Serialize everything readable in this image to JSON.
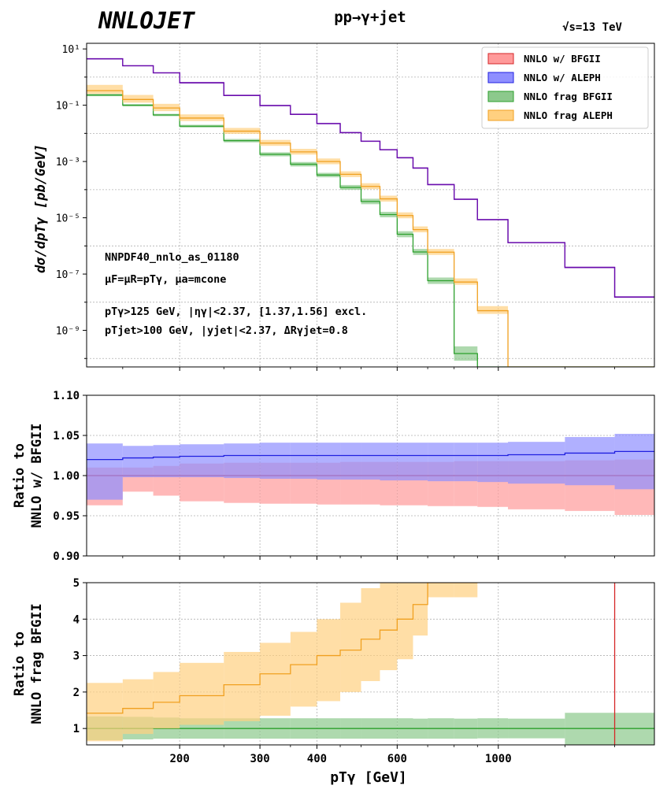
{
  "header": {
    "logo": "NNLOJET",
    "process": "pp→γ+jet",
    "energy": "√s=13 TeV"
  },
  "colors": {
    "bfgii": "#d62728",
    "bfgii_band": "#ff9a9a",
    "aleph": "#2020e0",
    "aleph_band": "#8f8fff",
    "frag_bfgii": "#2ca02c",
    "frag_bfgii_band": "#8cc98c",
    "frag_aleph": "#f0a020",
    "frag_aleph_band": "#ffd080",
    "overlap_line": "#6a0dad",
    "grid": "#b0b0b0"
  },
  "chart_data": {
    "type": "line",
    "bin_edges": [
      125,
      150,
      175,
      200,
      250,
      300,
      350,
      400,
      450,
      500,
      550,
      600,
      650,
      700,
      800,
      900,
      1050,
      1400,
      1800,
      2200
    ],
    "x_tick_labels": [
      "200",
      "300",
      "400",
      "600",
      "1000"
    ],
    "x_tick_values": [
      200,
      300,
      400,
      600,
      1000
    ],
    "xlabel": "pTγ [GeV]",
    "annotations": [
      "NNPDF40_nnlo_as_01180",
      "μF=μR=pTγ, μa=mcone",
      "pTγ>125 GeV, |ηγ|<2.37, [1.37,1.56] excl.",
      "pTjet>100 GeV, |yjet|<2.37, ΔRγjet=0.8"
    ],
    "legend": [
      "NNLO w/ BFGII",
      "NNLO w/ ALEPH",
      "NNLO frag BFGII",
      "NNLO frag ALEPH"
    ],
    "panels": [
      {
        "name": "main",
        "ylabel": "dσ/dpTγ [pb/GeV]",
        "yscale": "log",
        "ylim_exp": [
          -10.3,
          1.2
        ],
        "y_ticks": [
          "10¹",
          "10⁻¹",
          "10⁻³",
          "10⁻⁵",
          "10⁻⁷",
          "10⁻⁹"
        ],
        "y_tick_exps": [
          1,
          -1,
          -3,
          -5,
          -7,
          -9
        ],
        "series": [
          {
            "name": "NNLO w/ BFGII",
            "key": "bfgii",
            "values": [
              4.4,
              2.5,
              1.4,
              0.62,
              0.22,
              0.096,
              0.047,
              0.022,
              0.0105,
              0.0052,
              0.0026,
              0.00135,
              0.00058,
              0.00015,
              4.5e-05,
              8.5e-06,
              1.3e-06,
              1.7e-07,
              1.5e-08
            ],
            "err": 0.01
          },
          {
            "name": "NNLO w/ ALEPH",
            "key": "aleph",
            "values": [
              4.5,
              2.55,
              1.43,
              0.635,
              0.225,
              0.098,
              0.048,
              0.0225,
              0.0107,
              0.0053,
              0.00265,
              0.00138,
              0.00059,
              0.000153,
              4.6e-05,
              8.7e-06,
              1.32e-06,
              1.74e-07,
              1.55e-08
            ],
            "err": 0.012
          },
          {
            "name": "NNLO frag BFGII",
            "key": "frag_bfgii",
            "values": [
              0.23,
              0.1,
              0.045,
              0.018,
              0.0055,
              0.0018,
              0.0008,
              0.00033,
              0.00012,
              3.8e-05,
              1.3e-05,
              2.6e-06,
              6.1e-07,
              5.8e-08,
              1.5e-10,
              1e-12,
              1e-12,
              1e-12,
              1e-12
            ],
            "err_up": [
              0.1,
              0.1,
              0.1,
              0.12,
              0.15,
              0.18,
              0.2,
              0.2,
              0.22,
              0.25,
              0.25,
              0.28,
              0.28,
              0.3,
              0.8,
              0,
              0,
              0,
              0
            ],
            "err_dn": [
              0.1,
              0.1,
              0.1,
              0.12,
              0.15,
              0.18,
              0.2,
              0.2,
              0.22,
              0.25,
              0.25,
              0.28,
              0.28,
              0.3,
              0.8,
              0,
              0,
              0,
              0
            ]
          },
          {
            "name": "NNLO frag ALEPH",
            "key": "frag_aleph",
            "values": [
              0.33,
              0.16,
              0.08,
              0.035,
              0.012,
              0.0045,
              0.0022,
              0.001,
              0.00035,
              0.00013,
              4.7e-05,
              1.2e-05,
              3.8e-06,
              6e-07,
              5.2e-08,
              5e-09,
              1e-12,
              1e-12,
              1e-12
            ],
            "err_up": [
              0.6,
              0.45,
              0.4,
              0.35,
              0.3,
              0.3,
              0.28,
              0.28,
              0.28,
              0.3,
              0.3,
              0.3,
              0.3,
              0.3,
              0.35,
              0.45,
              0,
              0,
              0
            ],
            "err_dn": [
              0.3,
              0.3,
              0.3,
              0.28,
              0.25,
              0.25,
              0.25,
              0.25,
              0.25,
              0.25,
              0.25,
              0.25,
              0.25,
              0.25,
              0.25,
              0.3,
              0,
              0,
              0
            ]
          }
        ]
      },
      {
        "name": "ratio1",
        "ylabel": [
          "Ratio to",
          "NNLO w/ BFGII"
        ],
        "ylim": [
          0.9,
          1.1
        ],
        "y_ticks": [
          0.9,
          0.95,
          1.0,
          1.05,
          1.1
        ],
        "y_tick_labels": [
          "0.90",
          "0.95",
          "1.00",
          "1.05",
          "1.10"
        ],
        "series": [
          {
            "name": "NNLO w/ BFGII",
            "key": "bfgii",
            "center": [
              1,
              1,
              1,
              1,
              1,
              1,
              1,
              1,
              1,
              1,
              1,
              1,
              1,
              1,
              1,
              1,
              1,
              1,
              1
            ],
            "low": [
              0.963,
              0.98,
              0.975,
              0.968,
              0.966,
              0.965,
              0.965,
              0.964,
              0.964,
              0.964,
              0.963,
              0.963,
              0.963,
              0.962,
              0.962,
              0.961,
              0.958,
              0.956,
              0.951
            ],
            "high": [
              1.01,
              1.01,
              1.012,
              1.015,
              1.016,
              1.016,
              1.016,
              1.016,
              1.017,
              1.017,
              1.017,
              1.017,
              1.017,
              1.017,
              1.018,
              1.018,
              1.018,
              1.019,
              1.02
            ]
          },
          {
            "name": "NNLO w/ ALEPH",
            "key": "aleph",
            "center": [
              1.02,
              1.022,
              1.023,
              1.024,
              1.025,
              1.025,
              1.025,
              1.025,
              1.025,
              1.025,
              1.025,
              1.025,
              1.025,
              1.025,
              1.025,
              1.025,
              1.026,
              1.028,
              1.03
            ],
            "low": [
              0.97,
              0.998,
              0.998,
              0.998,
              0.997,
              0.996,
              0.996,
              0.995,
              0.995,
              0.995,
              0.994,
              0.994,
              0.994,
              0.993,
              0.993,
              0.992,
              0.99,
              0.988,
              0.983
            ],
            "high": [
              1.04,
              1.037,
              1.038,
              1.039,
              1.04,
              1.041,
              1.041,
              1.041,
              1.041,
              1.041,
              1.041,
              1.041,
              1.041,
              1.041,
              1.041,
              1.041,
              1.042,
              1.048,
              1.052
            ]
          }
        ]
      },
      {
        "name": "ratio2",
        "ylabel": [
          "Ratio to",
          "NNLO frag BFGII"
        ],
        "ylim": [
          0.55,
          5.0
        ],
        "y_ticks": [
          1,
          2,
          3,
          4,
          5
        ],
        "y_tick_labels": [
          "1",
          "2",
          "3",
          "4",
          "5"
        ],
        "series": [
          {
            "name": "NNLO frag BFGII",
            "key": "frag_bfgii",
            "center": [
              1,
              1,
              1,
              1,
              1,
              1,
              1,
              1,
              1,
              1,
              1,
              1,
              1,
              1,
              1,
              1,
              1,
              1,
              1
            ],
            "low": [
              0.68,
              0.7,
              0.72,
              0.72,
              0.72,
              0.72,
              0.72,
              0.72,
              0.72,
              0.72,
              0.72,
              0.72,
              0.72,
              0.72,
              0.72,
              0.73,
              0.73,
              0.55,
              0.55
            ],
            "high": [
              1.33,
              1.32,
              1.3,
              1.28,
              1.28,
              1.28,
              1.28,
              1.28,
              1.28,
              1.28,
              1.28,
              1.28,
              1.27,
              1.28,
              1.27,
              1.28,
              1.27,
              1.43,
              1.43
            ]
          },
          {
            "name": "NNLO frag ALEPH",
            "key": "frag_aleph",
            "center": [
              1.42,
              1.55,
              1.72,
              1.9,
              2.2,
              2.5,
              2.75,
              3.0,
              3.15,
              3.45,
              3.7,
              4.0,
              4.4,
              5.0,
              5.0
            ],
            "low": [
              0.65,
              0.85,
              1.0,
              1.1,
              1.2,
              1.35,
              1.6,
              1.75,
              2.0,
              2.3,
              2.6,
              2.9,
              3.55,
              4.6,
              4.6
            ],
            "high": [
              2.25,
              2.35,
              2.55,
              2.8,
              3.1,
              3.35,
              3.65,
              4.0,
              4.45,
              4.85,
              5.0,
              5.0,
              5.0,
              5.0,
              5.0
            ]
          }
        ]
      }
    ]
  }
}
